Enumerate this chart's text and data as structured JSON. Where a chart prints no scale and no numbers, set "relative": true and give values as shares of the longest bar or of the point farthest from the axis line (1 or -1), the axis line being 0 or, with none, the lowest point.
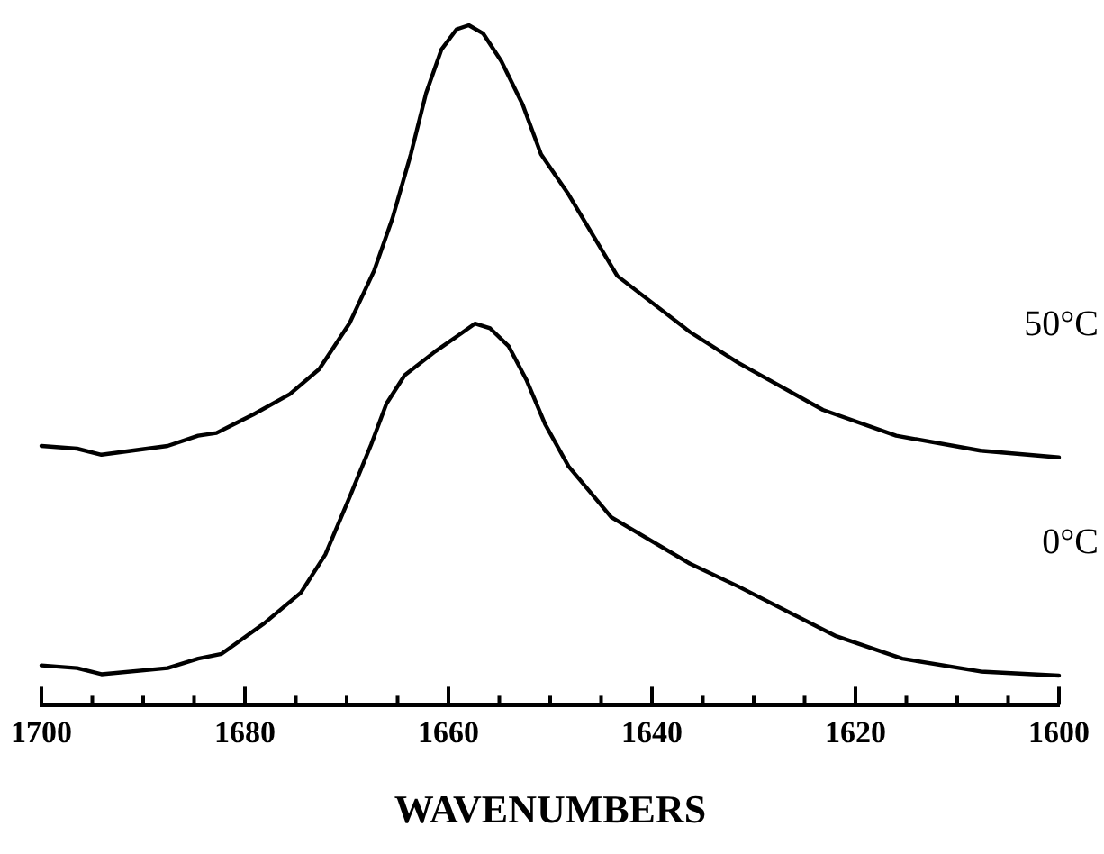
{
  "chart_data": {
    "type": "line",
    "xlabel": "WAVENUMBERS",
    "relative": true,
    "legend": false,
    "grid": false,
    "marker": "none",
    "line_style": "solid",
    "tick_labels": "x",
    "xlim": [
      1700,
      1600
    ],
    "xticks": [
      1700,
      {
        "value": 1695,
        "label": null
      },
      {
        "value": 1690,
        "label": null
      },
      {
        "value": 1685,
        "label": null
      },
      1680,
      {
        "value": 1675,
        "label": null
      },
      {
        "value": 1670,
        "label": null
      },
      {
        "value": 1665,
        "label": null
      },
      1660,
      {
        "value": 1655,
        "label": null
      },
      {
        "value": 1650,
        "label": null
      },
      {
        "value": 1645,
        "label": null
      },
      1640,
      {
        "value": 1635,
        "label": null
      },
      {
        "value": 1630,
        "label": null
      },
      {
        "value": 1625,
        "label": null
      },
      1620,
      {
        "value": 1615,
        "label": null
      },
      {
        "value": 1610,
        "label": null
      },
      {
        "value": 1605,
        "label": null
      },
      1600
    ],
    "series": [
      {
        "name": "50°C",
        "color": "#000000",
        "x": [
          1700,
          1696.5,
          1694.1,
          1687.6,
          1684.6,
          1682.8,
          1679.2,
          1675.6,
          1672.7,
          1669.7,
          1667.3,
          1665.5,
          1663.7,
          1662.2,
          1660.7,
          1659.2,
          1658.0,
          1656.6,
          1654.8,
          1652.7,
          1650.9,
          1648.2,
          1643.4,
          1636.3,
          1631.5,
          1623.2,
          1616.0,
          1607.7,
          1600
        ],
        "values": [
          0.381,
          0.377,
          0.368,
          0.381,
          0.396,
          0.4,
          0.427,
          0.457,
          0.494,
          0.562,
          0.639,
          0.716,
          0.81,
          0.9,
          0.964,
          0.994,
          1.0,
          0.988,
          0.947,
          0.883,
          0.81,
          0.751,
          0.631,
          0.549,
          0.503,
          0.434,
          0.396,
          0.374,
          0.364
        ]
      },
      {
        "name": "0°C",
        "color": "#000000",
        "x": [
          1700,
          1696.5,
          1694.1,
          1687.6,
          1684.6,
          1682.3,
          1678.1,
          1674.5,
          1672.1,
          1669.7,
          1667.6,
          1666.1,
          1664.3,
          1661.3,
          1658.9,
          1657.4,
          1655.9,
          1654.1,
          1652.3,
          1650.5,
          1648.2,
          1644.0,
          1636.3,
          1631.5,
          1621.9,
          1615.4,
          1607.7,
          1600
        ],
        "values": [
          0.058,
          0.054,
          0.045,
          0.054,
          0.068,
          0.075,
          0.12,
          0.165,
          0.221,
          0.306,
          0.383,
          0.443,
          0.485,
          0.52,
          0.545,
          0.561,
          0.554,
          0.528,
          0.477,
          0.413,
          0.351,
          0.276,
          0.208,
          0.174,
          0.101,
          0.068,
          0.049,
          0.043
        ]
      }
    ]
  }
}
